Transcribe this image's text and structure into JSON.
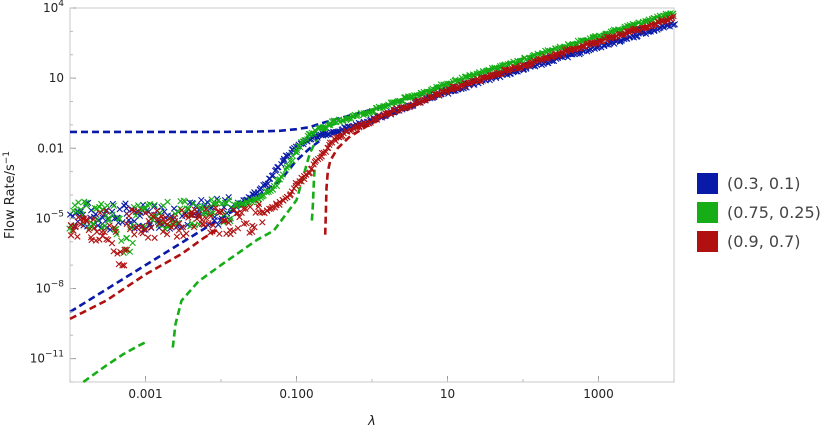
{
  "chart_data": {
    "type": "scatter",
    "scale": {
      "x": "log10",
      "y": "log10"
    },
    "xlim": [
      0.0001,
      10000
    ],
    "ylim": [
      1e-12,
      10000
    ],
    "x_ticks": [
      {
        "value": 0.001,
        "label": "0.001"
      },
      {
        "value": 0.1,
        "label": "0.100"
      },
      {
        "value": 10,
        "label": "10"
      },
      {
        "value": 1000,
        "label": "1000"
      }
    ],
    "y_ticks": [
      {
        "value": 1e-11,
        "base": "10",
        "exp": "−11"
      },
      {
        "value": 1e-08,
        "base": "10",
        "exp": "−8"
      },
      {
        "value": 1e-05,
        "base": "10",
        "exp": "−5"
      },
      {
        "value": 0.01,
        "label": "0.01"
      },
      {
        "value": 10,
        "label": "10"
      },
      {
        "value": 10000,
        "base": "10",
        "exp": "4"
      }
    ],
    "xlabel": "λ",
    "ylabel": "Flow Rate/s",
    "ylabel_sup": "−1",
    "legend_position": "right",
    "series": [
      {
        "name": "(0.3, 0.1)",
        "color": "#0a1aa8",
        "noise_level": 1.2e-05,
        "markers": [
          [
            0.0001,
            1.5e-05
          ],
          [
            0.00015,
            1.2e-05
          ],
          [
            0.0002,
            1.4e-05
          ],
          [
            0.0003,
            1.1e-05
          ],
          [
            0.0005,
            1.3e-05
          ],
          [
            0.0008,
            1.5e-05
          ],
          [
            0.001,
            1.2e-05
          ],
          [
            0.002,
            1.4e-05
          ],
          [
            0.005,
            1.6e-05
          ],
          [
            0.01,
            2e-05
          ],
          [
            0.02,
            5e-05
          ],
          [
            0.04,
            0.0003
          ],
          [
            0.06,
            0.002
          ],
          [
            0.08,
            0.006
          ],
          [
            0.1,
            0.012
          ],
          [
            0.15,
            0.025
          ],
          [
            0.2,
            0.035
          ],
          [
            0.3,
            0.05
          ],
          [
            0.5,
            0.08
          ],
          [
            1,
            0.16
          ],
          [
            2,
            0.4
          ],
          [
            5,
            1.2
          ],
          [
            10,
            2.5
          ],
          [
            30,
            8
          ],
          [
            100,
            25
          ],
          [
            300,
            70
          ],
          [
            1000,
            220
          ],
          [
            3000,
            650
          ],
          [
            10000,
            2200
          ]
        ],
        "dashed_curves": [
          [
            [
              0.0001,
              0.05
            ],
            [
              0.001,
              0.05
            ],
            [
              0.01,
              0.05
            ],
            [
              0.03,
              0.052
            ],
            [
              0.06,
              0.056
            ],
            [
              0.1,
              0.065
            ],
            [
              0.15,
              0.08
            ],
            [
              0.2,
              0.11
            ],
            [
              0.3,
              0.16
            ],
            [
              0.5,
              0.25
            ],
            [
              1,
              0.45
            ],
            [
              3,
              1.3
            ],
            [
              10,
              4
            ],
            [
              100,
              40
            ],
            [
              1000,
              400
            ],
            [
              10000,
              4000
            ]
          ],
          [
            [
              0.0001,
              1e-09
            ],
            [
              0.0003,
              9e-09
            ],
            [
              0.001,
              1e-07
            ],
            [
              0.003,
              9e-07
            ],
            [
              0.01,
              1e-05
            ],
            [
              0.03,
              9e-05
            ],
            [
              0.06,
              0.0004
            ],
            [
              0.1,
              0.003
            ],
            [
              0.15,
              0.01
            ],
            [
              0.2,
              0.02
            ]
          ]
        ]
      },
      {
        "name": "(0.75, 0.25)",
        "color": "#16ad16",
        "noise_level": 1e-05,
        "markers": [
          [
            0.0001,
            1.2e-05
          ],
          [
            0.0002,
            1.4e-05
          ],
          [
            0.0004,
            1.1e-05
          ],
          [
            0.0006,
            3e-07
          ],
          [
            0.0007,
            1.3e-05
          ],
          [
            0.001,
            1.2e-05
          ],
          [
            0.003,
            1.5e-05
          ],
          [
            0.005,
            1.5e-05
          ],
          [
            0.01,
            2e-05
          ],
          [
            0.03,
            7e-05
          ],
          [
            0.05,
            0.0002
          ],
          [
            0.08,
            0.002
          ],
          [
            0.1,
            0.008
          ],
          [
            0.15,
            0.04
          ],
          [
            0.2,
            0.07
          ],
          [
            0.3,
            0.12
          ],
          [
            0.5,
            0.2
          ],
          [
            1,
            0.4
          ],
          [
            2,
            0.9
          ],
          [
            5,
            2.5
          ],
          [
            10,
            5.5
          ],
          [
            30,
            18
          ],
          [
            100,
            60
          ],
          [
            300,
            190
          ],
          [
            1000,
            600
          ],
          [
            3000,
            1900
          ],
          [
            10000,
            6500
          ]
        ],
        "dashed_curves": [
          [
            [
              0.00015,
              1e-12
            ],
            [
              0.0003,
              5e-12
            ],
            [
              0.0005,
              1.5e-11
            ],
            [
              0.0008,
              3.5e-11
            ],
            [
              0.001,
              5e-11
            ]
          ],
          [
            [
              0.0023,
              3e-11
            ],
            [
              0.0025,
              3e-10
            ],
            [
              0.003,
              3e-09
            ],
            [
              0.005,
              2e-08
            ],
            [
              0.01,
              1e-07
            ],
            [
              0.03,
              1.2e-06
            ],
            [
              0.05,
              3e-06
            ],
            [
              0.1,
              6e-05
            ],
            [
              0.15,
              0.006
            ],
            [
              0.2,
              0.04
            ],
            [
              0.3,
              0.1
            ],
            [
              1,
              0.45
            ],
            [
              10,
              6
            ],
            [
              100,
              70
            ],
            [
              1000,
              700
            ],
            [
              10000,
              7000
            ]
          ],
          [
            [
              0.16,
              8e-06
            ],
            [
              0.165,
              4e-05
            ],
            [
              0.17,
              0.0004
            ],
            [
              0.175,
              0.002
            ]
          ]
        ]
      },
      {
        "name": "(0.9, 0.7)",
        "color": "#b01010",
        "noise_level": 6e-06,
        "markers": [
          [
            0.0001,
            5e-06
          ],
          [
            0.0002,
            4e-06
          ],
          [
            0.0003,
            6e-06
          ],
          [
            0.0005,
            2e-07
          ],
          [
            0.0006,
            7e-06
          ],
          [
            0.0008,
            5e-06
          ],
          [
            0.001,
            6e-06
          ],
          [
            0.002,
            5e-06
          ],
          [
            0.005,
            7e-06
          ],
          [
            0.01,
            8e-06
          ],
          [
            0.02,
            7e-06
          ],
          [
            0.05,
            3e-05
          ],
          [
            0.08,
            0.0001
          ],
          [
            0.1,
            0.0003
          ],
          [
            0.15,
            0.001
          ],
          [
            0.2,
            0.004
          ],
          [
            0.3,
            0.02
          ],
          [
            0.5,
            0.06
          ],
          [
            1,
            0.15
          ],
          [
            2,
            0.4
          ],
          [
            5,
            1.2
          ],
          [
            10,
            3
          ],
          [
            30,
            10
          ],
          [
            100,
            35
          ],
          [
            300,
            110
          ],
          [
            1000,
            380
          ],
          [
            3000,
            1100
          ],
          [
            10000,
            3800
          ]
        ],
        "dashed_curves": [
          [
            [
              0.0001,
              5e-10
            ],
            [
              0.0003,
              3e-09
            ],
            [
              0.001,
              4e-08
            ],
            [
              0.003,
              3e-07
            ],
            [
              0.006,
              1.5e-06
            ],
            [
              0.01,
              4e-06
            ]
          ],
          [
            [
              0.24,
              2e-06
            ],
            [
              0.245,
              2e-05
            ],
            [
              0.25,
              0.0002
            ],
            [
              0.26,
              0.001
            ],
            [
              0.28,
              0.003
            ],
            [
              0.35,
              0.01
            ],
            [
              0.5,
              0.03
            ],
            [
              1,
              0.12
            ],
            [
              10,
              2.5
            ],
            [
              100,
              35
            ],
            [
              1000,
              380
            ],
            [
              10000,
              3800
            ]
          ]
        ]
      }
    ]
  }
}
